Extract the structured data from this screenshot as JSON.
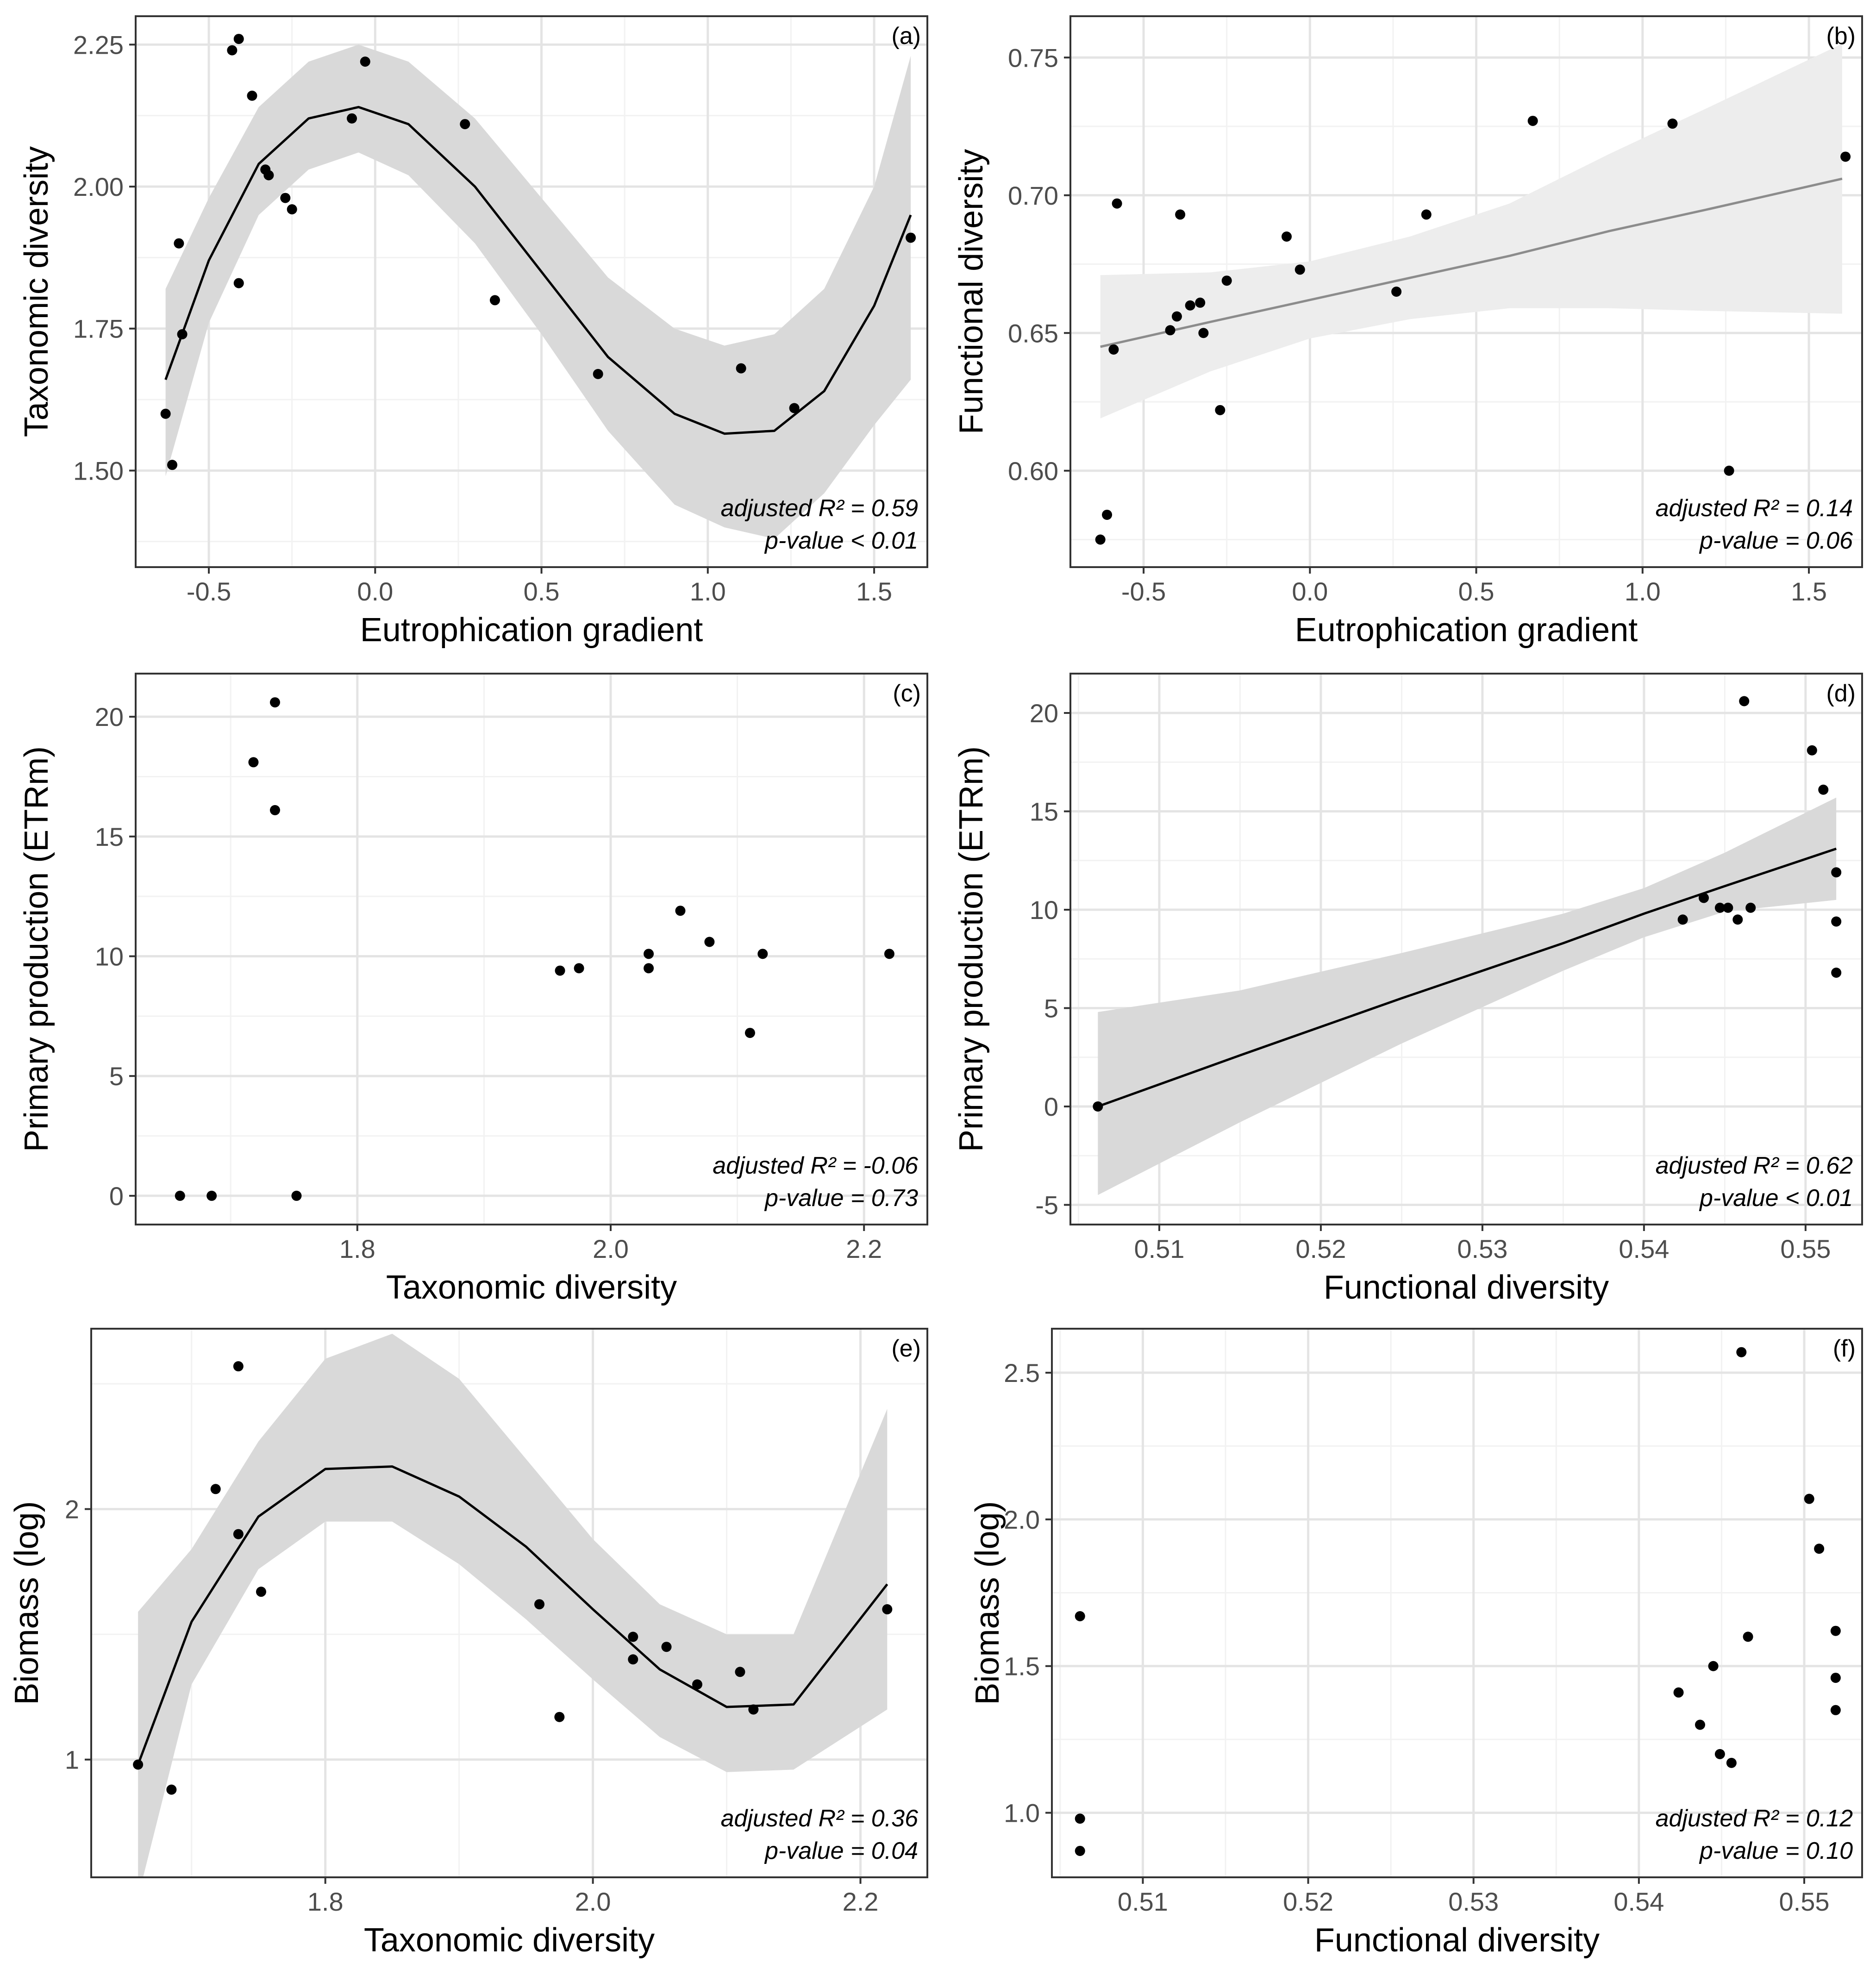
{
  "chart_data": [
    {
      "id": "a",
      "type": "scatter",
      "panel_label": "(a)",
      "xlabel": "Eutrophication gradient",
      "ylabel": "Taxonomic diversity",
      "xlim": [
        -0.72,
        1.66
      ],
      "ylim": [
        1.33,
        2.3
      ],
      "x_ticks": [
        -0.5,
        0.0,
        0.5,
        1.0,
        1.5
      ],
      "x_tick_labels": [
        "-0.5",
        "0.0",
        "0.5",
        "1.0",
        "1.5"
      ],
      "y_ticks": [
        1.5,
        1.75,
        2.0,
        2.25
      ],
      "y_tick_labels": [
        "1.50",
        "1.75",
        "2.00",
        "2.25"
      ],
      "points": [
        {
          "x": -0.63,
          "y": 1.6
        },
        {
          "x": -0.61,
          "y": 1.51
        },
        {
          "x": -0.59,
          "y": 1.9
        },
        {
          "x": -0.58,
          "y": 1.74
        },
        {
          "x": -0.43,
          "y": 2.24
        },
        {
          "x": -0.41,
          "y": 2.26
        },
        {
          "x": -0.41,
          "y": 1.83
        },
        {
          "x": -0.37,
          "y": 2.16
        },
        {
          "x": -0.33,
          "y": 2.03
        },
        {
          "x": -0.32,
          "y": 2.02
        },
        {
          "x": -0.27,
          "y": 1.98
        },
        {
          "x": -0.25,
          "y": 1.96
        },
        {
          "x": -0.07,
          "y": 2.12
        },
        {
          "x": -0.03,
          "y": 2.22
        },
        {
          "x": 0.27,
          "y": 2.11
        },
        {
          "x": 0.36,
          "y": 1.8
        },
        {
          "x": 0.67,
          "y": 1.67
        },
        {
          "x": 1.1,
          "y": 1.68
        },
        {
          "x": 1.26,
          "y": 1.61
        },
        {
          "x": 1.61,
          "y": 1.91
        }
      ],
      "fit": {
        "x": [
          -0.63,
          -0.5,
          -0.35,
          -0.2,
          -0.05,
          0.1,
          0.3,
          0.5,
          0.7,
          0.9,
          1.05,
          1.2,
          1.35,
          1.5,
          1.61
        ],
        "y": [
          1.66,
          1.87,
          2.04,
          2.12,
          2.14,
          2.11,
          2.0,
          1.85,
          1.7,
          1.6,
          1.565,
          1.57,
          1.64,
          1.79,
          1.95
        ],
        "lower": [
          1.49,
          1.76,
          1.95,
          2.03,
          2.06,
          2.02,
          1.9,
          1.74,
          1.57,
          1.44,
          1.4,
          1.38,
          1.46,
          1.58,
          1.66
        ],
        "upper": [
          1.82,
          1.98,
          2.14,
          2.22,
          2.25,
          2.22,
          2.12,
          1.98,
          1.84,
          1.75,
          1.72,
          1.74,
          1.82,
          2.0,
          2.23
        ],
        "line_color": "#000000",
        "band_color": "#d9d9d9"
      },
      "annotation": [
        "adjusted R² = 0.59",
        "p-value < 0.01"
      ]
    },
    {
      "id": "b",
      "type": "scatter",
      "panel_label": "(b)",
      "xlabel": "Eutrophication gradient",
      "ylabel": "Functional diversity",
      "xlim": [
        -0.72,
        1.66
      ],
      "ylim": [
        0.565,
        0.765
      ],
      "x_ticks": [
        -0.5,
        0.0,
        0.5,
        1.0,
        1.5
      ],
      "x_tick_labels": [
        "-0.5",
        "0.0",
        "0.5",
        "1.0",
        "1.5"
      ],
      "y_ticks": [
        0.6,
        0.65,
        0.7,
        0.75
      ],
      "y_tick_labels": [
        "0.60",
        "0.65",
        "0.70",
        "0.75"
      ],
      "points": [
        {
          "x": -0.63,
          "y": 0.575
        },
        {
          "x": -0.61,
          "y": 0.584
        },
        {
          "x": -0.59,
          "y": 0.644
        },
        {
          "x": -0.58,
          "y": 0.697
        },
        {
          "x": -0.42,
          "y": 0.651
        },
        {
          "x": -0.4,
          "y": 0.656
        },
        {
          "x": -0.39,
          "y": 0.693
        },
        {
          "x": -0.36,
          "y": 0.66
        },
        {
          "x": -0.33,
          "y": 0.661
        },
        {
          "x": -0.32,
          "y": 0.65
        },
        {
          "x": -0.27,
          "y": 0.622
        },
        {
          "x": -0.25,
          "y": 0.669
        },
        {
          "x": -0.07,
          "y": 0.685
        },
        {
          "x": -0.03,
          "y": 0.673
        },
        {
          "x": 0.26,
          "y": 0.665
        },
        {
          "x": 0.35,
          "y": 0.693
        },
        {
          "x": 0.67,
          "y": 0.727
        },
        {
          "x": 1.09,
          "y": 0.726
        },
        {
          "x": 1.26,
          "y": 0.6
        },
        {
          "x": 1.61,
          "y": 0.714
        }
      ],
      "fit": {
        "x": [
          -0.63,
          -0.3,
          0.0,
          0.3,
          0.6,
          0.9,
          1.2,
          1.6
        ],
        "y": [
          0.645,
          0.654,
          0.662,
          0.67,
          0.678,
          0.687,
          0.695,
          0.706
        ],
        "lower": [
          0.619,
          0.636,
          0.648,
          0.655,
          0.659,
          0.659,
          0.658,
          0.657
        ],
        "upper": [
          0.671,
          0.672,
          0.676,
          0.685,
          0.697,
          0.715,
          0.732,
          0.755
        ],
        "line_color": "#8c8c8c",
        "band_color": "#ededed"
      },
      "annotation": [
        "adjusted R² = 0.14",
        "p-value = 0.06"
      ]
    },
    {
      "id": "c",
      "type": "scatter",
      "panel_label": "(c)",
      "xlabel": "Taxonomic diversity",
      "ylabel": "Primary production (ETRm)",
      "xlim": [
        1.625,
        2.25
      ],
      "ylim": [
        -1.2,
        21.8
      ],
      "x_ticks": [
        1.8,
        2.0,
        2.2
      ],
      "x_tick_labels": [
        "1.8",
        "2.0",
        "2.2"
      ],
      "y_ticks": [
        0,
        5,
        10,
        15,
        20
      ],
      "y_tick_labels": [
        "0",
        "5",
        "10",
        "15",
        "20"
      ],
      "points": [
        {
          "x": 1.66,
          "y": 0.0
        },
        {
          "x": 1.685,
          "y": 0.0
        },
        {
          "x": 1.718,
          "y": 18.1
        },
        {
          "x": 1.735,
          "y": 20.6
        },
        {
          "x": 1.735,
          "y": 16.1
        },
        {
          "x": 1.752,
          "y": 0.0
        },
        {
          "x": 1.96,
          "y": 9.4
        },
        {
          "x": 1.975,
          "y": 9.5
        },
        {
          "x": 2.03,
          "y": 9.5
        },
        {
          "x": 2.03,
          "y": 10.1
        },
        {
          "x": 2.055,
          "y": 11.9
        },
        {
          "x": 2.078,
          "y": 10.6
        },
        {
          "x": 2.11,
          "y": 6.8
        },
        {
          "x": 2.12,
          "y": 10.1
        },
        {
          "x": 2.22,
          "y": 10.1
        }
      ],
      "annotation": [
        "adjusted R² = -0.06",
        "p-value = 0.73"
      ]
    },
    {
      "id": "d",
      "type": "scatter",
      "panel_label": "(d)",
      "xlabel": "Functional diversity",
      "ylabel": "Primary production (ETRm)",
      "xlim": [
        0.5045,
        0.5535
      ],
      "ylim": [
        -6.0,
        22.0
      ],
      "x_ticks": [
        0.51,
        0.52,
        0.53,
        0.54,
        0.55
      ],
      "x_tick_labels": [
        "0.51",
        "0.52",
        "0.53",
        "0.54",
        "0.55"
      ],
      "y_ticks": [
        -5,
        0,
        5,
        10,
        15,
        20
      ],
      "y_tick_labels": [
        "-5",
        "0",
        "5",
        "10",
        "15",
        "20"
      ],
      "points": [
        {
          "x": 0.5062,
          "y": 0.0
        },
        {
          "x": 0.5424,
          "y": 9.5
        },
        {
          "x": 0.5437,
          "y": 10.6
        },
        {
          "x": 0.5447,
          "y": 10.1
        },
        {
          "x": 0.5452,
          "y": 10.1
        },
        {
          "x": 0.5458,
          "y": 9.5
        },
        {
          "x": 0.5462,
          "y": 20.6
        },
        {
          "x": 0.5466,
          "y": 10.1
        },
        {
          "x": 0.5504,
          "y": 18.1
        },
        {
          "x": 0.5511,
          "y": 16.1
        },
        {
          "x": 0.5519,
          "y": 11.9
        },
        {
          "x": 0.5519,
          "y": 9.4
        },
        {
          "x": 0.5519,
          "y": 6.8
        }
      ],
      "fit": {
        "x": [
          0.5062,
          0.515,
          0.525,
          0.535,
          0.54,
          0.545,
          0.5519
        ],
        "y": [
          0.0,
          2.6,
          5.5,
          8.3,
          9.8,
          11.2,
          13.1
        ],
        "lower": [
          -4.5,
          -0.8,
          3.2,
          6.9,
          8.6,
          9.9,
          10.5
        ],
        "upper": [
          4.8,
          5.9,
          7.8,
          9.8,
          11.1,
          12.9,
          15.7
        ],
        "line_color": "#000000",
        "band_color": "#d9d9d9"
      },
      "annotation": [
        "adjusted R² = 0.62",
        "p-value < 0.01"
      ]
    },
    {
      "id": "e",
      "type": "scatter",
      "panel_label": "(e)",
      "xlabel": "Taxonomic diversity",
      "ylabel": "Biomass (log)",
      "xlim": [
        1.625,
        2.25
      ],
      "ylim": [
        0.53,
        2.72
      ],
      "x_ticks": [
        1.8,
        2.0,
        2.2
      ],
      "x_tick_labels": [
        "1.8",
        "2.0",
        "2.2"
      ],
      "y_ticks": [
        1,
        2
      ],
      "y_tick_labels": [
        "1",
        "2"
      ],
      "points": [
        {
          "x": 1.66,
          "y": 0.98
        },
        {
          "x": 1.685,
          "y": 0.88
        },
        {
          "x": 1.718,
          "y": 2.08
        },
        {
          "x": 1.735,
          "y": 2.57
        },
        {
          "x": 1.735,
          "y": 1.9
        },
        {
          "x": 1.752,
          "y": 1.67
        },
        {
          "x": 1.96,
          "y": 1.62
        },
        {
          "x": 1.975,
          "y": 1.17
        },
        {
          "x": 2.03,
          "y": 1.49
        },
        {
          "x": 2.03,
          "y": 1.4
        },
        {
          "x": 2.055,
          "y": 1.45
        },
        {
          "x": 2.078,
          "y": 1.3
        },
        {
          "x": 2.11,
          "y": 1.35
        },
        {
          "x": 2.12,
          "y": 1.2
        },
        {
          "x": 2.22,
          "y": 1.6
        }
      ],
      "fit": {
        "x": [
          1.66,
          1.7,
          1.75,
          1.8,
          1.85,
          1.9,
          1.95,
          2.0,
          2.05,
          2.1,
          2.15,
          2.22
        ],
        "y": [
          0.98,
          1.55,
          1.97,
          2.16,
          2.17,
          2.05,
          1.85,
          1.6,
          1.36,
          1.21,
          1.22,
          1.7
        ],
        "lower": [
          0.45,
          1.3,
          1.76,
          1.95,
          1.95,
          1.78,
          1.56,
          1.32,
          1.09,
          0.95,
          0.96,
          1.2
        ],
        "upper": [
          1.59,
          1.84,
          2.27,
          2.6,
          2.7,
          2.52,
          2.2,
          1.88,
          1.62,
          1.5,
          1.5,
          2.4
        ],
        "line_color": "#000000",
        "band_color": "#d9d9d9"
      },
      "annotation": [
        "adjusted R² = 0.36",
        "p-value = 0.04"
      ]
    },
    {
      "id": "f",
      "type": "scatter",
      "panel_label": "(f)",
      "xlabel": "Functional diversity",
      "ylabel": "Biomass (log)",
      "xlim": [
        0.5045,
        0.5535
      ],
      "ylim": [
        0.78,
        2.65
      ],
      "x_ticks": [
        0.51,
        0.52,
        0.53,
        0.54,
        0.55
      ],
      "x_tick_labels": [
        "0.51",
        "0.52",
        "0.53",
        "0.54",
        "0.55"
      ],
      "y_ticks": [
        1.0,
        1.5,
        2.0,
        2.5
      ],
      "y_tick_labels": [
        "1.0",
        "1.5",
        "2.0",
        "2.5"
      ],
      "points": [
        {
          "x": 0.5062,
          "y": 1.67
        },
        {
          "x": 0.5062,
          "y": 0.98
        },
        {
          "x": 0.5062,
          "y": 0.87
        },
        {
          "x": 0.5424,
          "y": 1.41
        },
        {
          "x": 0.5437,
          "y": 1.3
        },
        {
          "x": 0.5445,
          "y": 1.5
        },
        {
          "x": 0.5449,
          "y": 1.2
        },
        {
          "x": 0.5456,
          "y": 1.17
        },
        {
          "x": 0.5462,
          "y": 2.57
        },
        {
          "x": 0.5466,
          "y": 1.6
        },
        {
          "x": 0.5503,
          "y": 2.07
        },
        {
          "x": 0.5509,
          "y": 1.9
        },
        {
          "x": 0.5519,
          "y": 1.62
        },
        {
          "x": 0.5519,
          "y": 1.46
        },
        {
          "x": 0.5519,
          "y": 1.35
        }
      ],
      "annotation": [
        "adjusted R² = 0.12",
        "p-value = 0.10"
      ]
    }
  ]
}
